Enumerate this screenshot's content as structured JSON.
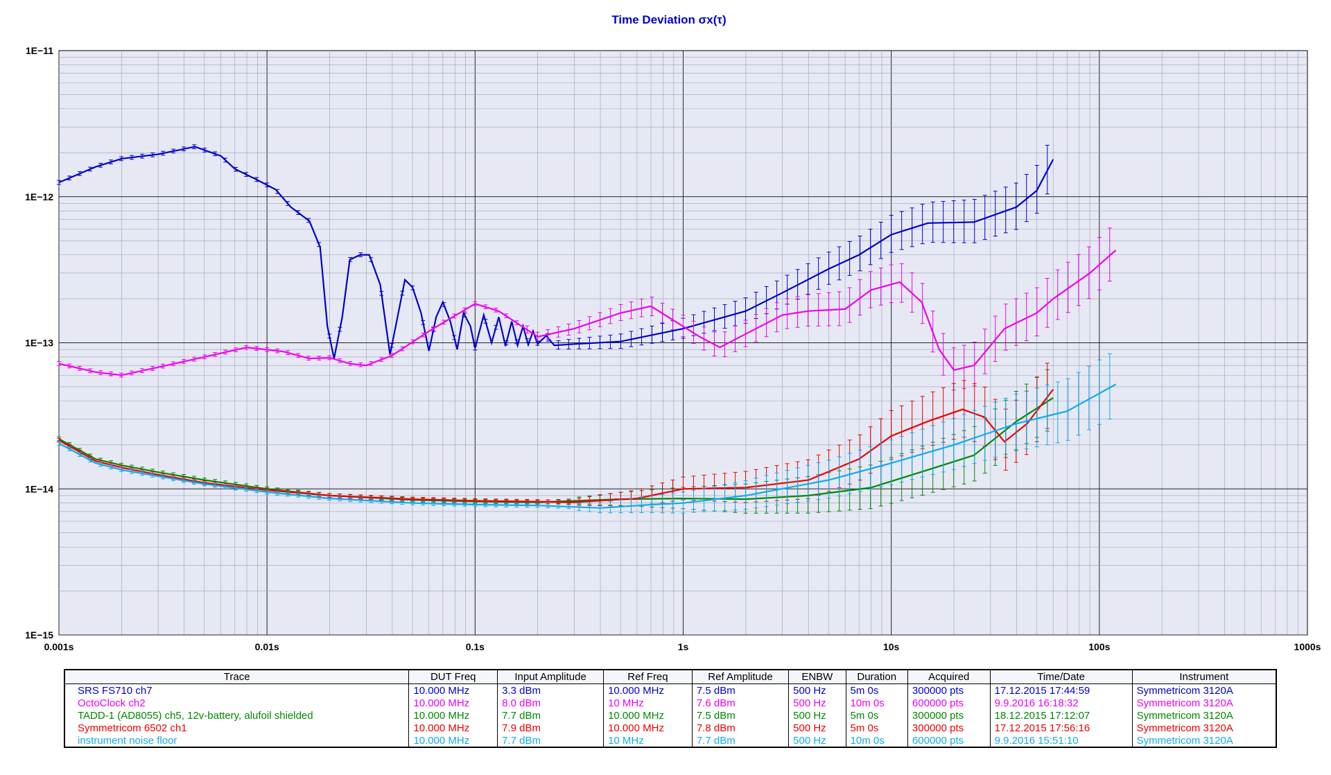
{
  "chart_data": {
    "type": "line",
    "title": "Time Deviation σx(τ)",
    "xscale": "log",
    "yscale": "log",
    "xlim": [
      0.001,
      1000
    ],
    "ylim": [
      1e-15,
      1e-11
    ],
    "x_ticks": [
      {
        "value": 0.001,
        "label": "0.001s"
      },
      {
        "value": 0.01,
        "label": "0.01s"
      },
      {
        "value": 0.1,
        "label": "0.1s"
      },
      {
        "value": 1,
        "label": "1s"
      },
      {
        "value": 10,
        "label": "10s"
      },
      {
        "value": 100,
        "label": "100s"
      },
      {
        "value": 1000,
        "label": "1000s"
      }
    ],
    "y_ticks": [
      {
        "value": 1e-11,
        "label": "1E−11"
      },
      {
        "value": 1e-12,
        "label": "1E−12"
      },
      {
        "value": 1e-13,
        "label": "1E−13"
      },
      {
        "value": 1e-14,
        "label": "1E−14"
      },
      {
        "value": 1e-15,
        "label": "1E−15"
      }
    ],
    "grid": true,
    "colors": {
      "background": "#e6e9f4",
      "major_grid": "#222222",
      "minor_grid": "#9aa0b4"
    },
    "series": [
      {
        "name": "SRS FS710 ch7",
        "color": "#0000cc",
        "points": [
          [
            0.001,
            1.25e-12
          ],
          [
            0.0015,
            1.6e-12
          ],
          [
            0.002,
            1.82e-12
          ],
          [
            0.003,
            1.95e-12
          ],
          [
            0.0045,
            2.2e-12
          ],
          [
            0.006,
            1.9e-12
          ],
          [
            0.007,
            1.55e-12
          ],
          [
            0.009,
            1.3e-12
          ],
          [
            0.011,
            1.12e-12
          ],
          [
            0.013,
            8.5e-13
          ],
          [
            0.016,
            6.8e-13
          ],
          [
            0.018,
            4.5e-13
          ],
          [
            0.0195,
            1.3e-13
          ],
          [
            0.021,
            7.8e-14
          ],
          [
            0.023,
            1.5e-13
          ],
          [
            0.025,
            3.7e-13
          ],
          [
            0.028,
            4e-13
          ],
          [
            0.031,
            4e-13
          ],
          [
            0.035,
            2.5e-13
          ],
          [
            0.039,
            8.3e-14
          ],
          [
            0.042,
            1.4e-13
          ],
          [
            0.046,
            2.7e-13
          ],
          [
            0.05,
            2.4e-13
          ],
          [
            0.055,
            1.6e-13
          ],
          [
            0.06,
            8.8e-14
          ],
          [
            0.065,
            1.5e-13
          ],
          [
            0.07,
            1.9e-13
          ],
          [
            0.076,
            1.4e-13
          ],
          [
            0.082,
            9e-14
          ],
          [
            0.088,
            1.6e-13
          ],
          [
            0.095,
            1.3e-13
          ],
          [
            0.1,
            9.2e-14
          ],
          [
            0.11,
            1.55e-13
          ],
          [
            0.12,
            1e-13
          ],
          [
            0.13,
            1.5e-13
          ],
          [
            0.14,
            9.5e-14
          ],
          [
            0.15,
            1.4e-13
          ],
          [
            0.16,
            9.6e-14
          ],
          [
            0.17,
            1.3e-13
          ],
          [
            0.18,
            9.7e-14
          ],
          [
            0.19,
            1.2e-13
          ],
          [
            0.2,
            9.8e-14
          ],
          [
            0.22,
            1.12e-13
          ],
          [
            0.24,
            9.6e-14
          ],
          [
            0.3,
            9.8e-14
          ],
          [
            0.5,
            1.02e-13
          ],
          [
            1,
            1.25e-13
          ],
          [
            2,
            1.65e-13
          ],
          [
            3,
            2.2e-13
          ],
          [
            5,
            3.2e-13
          ],
          [
            7,
            4e-13
          ],
          [
            10,
            5.5e-13
          ],
          [
            15,
            6.6e-13
          ],
          [
            25,
            6.7e-13
          ],
          [
            40,
            8.5e-13
          ],
          [
            50,
            1.1e-12
          ],
          [
            60,
            1.8e-12
          ]
        ],
        "error": {
          "from": 0.2,
          "lo": 0.4,
          "hi": 0.4
        }
      },
      {
        "name": "OctoClock ch2",
        "color": "#ee00ee",
        "points": [
          [
            0.001,
            7.2e-14
          ],
          [
            0.0015,
            6.3e-14
          ],
          [
            0.002,
            6e-14
          ],
          [
            0.003,
            6.8e-14
          ],
          [
            0.005,
            8e-14
          ],
          [
            0.008,
            9.3e-14
          ],
          [
            0.012,
            8.7e-14
          ],
          [
            0.016,
            7.8e-14
          ],
          [
            0.02,
            7.9e-14
          ],
          [
            0.025,
            7.2e-14
          ],
          [
            0.03,
            7e-14
          ],
          [
            0.04,
            8.2e-14
          ],
          [
            0.06,
            1.2e-13
          ],
          [
            0.1,
            1.85e-13
          ],
          [
            0.13,
            1.65e-13
          ],
          [
            0.2,
            1.1e-13
          ],
          [
            0.3,
            1.25e-13
          ],
          [
            0.5,
            1.6e-13
          ],
          [
            0.7,
            1.78e-13
          ],
          [
            1.2,
            1.1e-13
          ],
          [
            1.5,
            9.3e-14
          ],
          [
            2,
            1.15e-13
          ],
          [
            3,
            1.55e-13
          ],
          [
            4,
            1.65e-13
          ],
          [
            6,
            1.7e-13
          ],
          [
            8,
            2.3e-13
          ],
          [
            11,
            2.6e-13
          ],
          [
            14,
            1.9e-13
          ],
          [
            17,
            9e-14
          ],
          [
            20,
            6.5e-14
          ],
          [
            25,
            7e-14
          ],
          [
            35,
            1.25e-13
          ],
          [
            50,
            1.6e-13
          ],
          [
            60,
            2e-13
          ],
          [
            90,
            3e-13
          ],
          [
            120,
            4.3e-13
          ]
        ],
        "error": {
          "from": 0.16,
          "lo": 0.3,
          "hi": 0.45
        }
      },
      {
        "name": "TADD-1 (AD8055) ch5, 12v-battery, alufoil shielded",
        "color": "#008800",
        "points": [
          [
            0.001,
            2.2e-14
          ],
          [
            0.0015,
            1.6e-14
          ],
          [
            0.002,
            1.45e-14
          ],
          [
            0.003,
            1.3e-14
          ],
          [
            0.005,
            1.15e-14
          ],
          [
            0.01,
            1e-14
          ],
          [
            0.02,
            9e-15
          ],
          [
            0.05,
            8.4e-15
          ],
          [
            0.1,
            8.2e-15
          ],
          [
            0.2,
            8.1e-15
          ],
          [
            0.5,
            8.5e-15
          ],
          [
            1,
            8.6e-15
          ],
          [
            2,
            8.5e-15
          ],
          [
            4,
            9e-15
          ],
          [
            8,
            1.02e-14
          ],
          [
            15,
            1.35e-14
          ],
          [
            25,
            1.7e-14
          ],
          [
            40,
            2.9e-14
          ],
          [
            60,
            4.2e-14
          ]
        ],
        "error": {
          "from": 0.3,
          "lo": 0.35,
          "hi": 0.55
        }
      },
      {
        "name": "Symmetricom 6502 ch1",
        "color": "#ee0000",
        "points": [
          [
            0.001,
            2.15e-14
          ],
          [
            0.0015,
            1.55e-14
          ],
          [
            0.002,
            1.4e-14
          ],
          [
            0.003,
            1.25e-14
          ],
          [
            0.005,
            1.1e-14
          ],
          [
            0.01,
            9.8e-15
          ],
          [
            0.02,
            9e-15
          ],
          [
            0.05,
            8.5e-15
          ],
          [
            0.1,
            8.3e-15
          ],
          [
            0.3,
            8.1e-15
          ],
          [
            0.6,
            8.6e-15
          ],
          [
            1,
            1e-14
          ],
          [
            2,
            1.02e-14
          ],
          [
            4,
            1.15e-14
          ],
          [
            7,
            1.6e-14
          ],
          [
            10,
            2.3e-14
          ],
          [
            15,
            2.9e-14
          ],
          [
            22,
            3.5e-14
          ],
          [
            28,
            3.1e-14
          ],
          [
            35,
            2.1e-14
          ],
          [
            45,
            2.8e-14
          ],
          [
            60,
            4.8e-14
          ]
        ],
        "error": {
          "from": 0.3,
          "lo": 0.35,
          "hi": 0.6
        }
      },
      {
        "name": "instrument noise floor",
        "color": "#11aaee",
        "points": [
          [
            0.001,
            2.05e-14
          ],
          [
            0.0015,
            1.5e-14
          ],
          [
            0.002,
            1.35e-14
          ],
          [
            0.003,
            1.22e-14
          ],
          [
            0.005,
            1.08e-14
          ],
          [
            0.01,
            9.5e-15
          ],
          [
            0.02,
            8.6e-15
          ],
          [
            0.05,
            8e-15
          ],
          [
            0.1,
            7.8e-15
          ],
          [
            0.2,
            7.7e-15
          ],
          [
            0.4,
            7.4e-15
          ],
          [
            0.7,
            7.8e-15
          ],
          [
            1,
            8e-15
          ],
          [
            2,
            9e-15
          ],
          [
            5,
            1.15e-14
          ],
          [
            10,
            1.5e-14
          ],
          [
            20,
            2e-14
          ],
          [
            40,
            2.8e-14
          ],
          [
            70,
            3.4e-14
          ],
          [
            120,
            5.2e-14
          ]
        ],
        "error": {
          "from": 0.3,
          "lo": 0.35,
          "hi": 0.6
        }
      }
    ]
  },
  "legend_table": {
    "headers": [
      "Trace",
      "DUT Freq",
      "Input Amplitude",
      "Ref Freq",
      "Ref Amplitude",
      "ENBW",
      "Duration",
      "Acquired",
      "Time/Date",
      "Instrument"
    ],
    "rows": [
      {
        "color": "#0000cc",
        "cells": [
          "SRS FS710 ch7",
          "10.000 MHz",
          "3.3 dBm",
          "10.000 MHz",
          "7.5 dBm",
          "500 Hz",
          "5m 0s",
          "300000 pts",
          "17.12.2015 17:44:59",
          "Symmetricom 3120A"
        ]
      },
      {
        "color": "#ee00ee",
        "cells": [
          "OctoClock ch2",
          "10.000 MHz",
          "8.0 dBm",
          "10 MHz",
          "7.6 dBm",
          "500 Hz",
          "10m 0s",
          "600000 pts",
          "9.9.2016 16:18:32",
          "Symmetricom 3120A"
        ]
      },
      {
        "color": "#008800",
        "cells": [
          "TADD-1 (AD8055) ch5, 12v-battery, alufoil shielded",
          "10.000 MHz",
          "7.7 dBm",
          "10.000 MHz",
          "7.5 dBm",
          "500 Hz",
          "5m 0s",
          "300000 pts",
          "18.12.2015 17:12:07",
          "Symmetricom 3120A"
        ]
      },
      {
        "color": "#ee0000",
        "cells": [
          "Symmetricom 6502 ch1",
          "10.000 MHz",
          "7.9 dBm",
          "10.000 MHz",
          "7.8 dBm",
          "500 Hz",
          "5m 0s",
          "300000 pts",
          "17.12.2015 17:56:16",
          "Symmetricom 3120A"
        ]
      },
      {
        "color": "#11aaee",
        "cells": [
          "instrument noise floor",
          "10.000 MHz",
          "7.7 dBm",
          "10 MHz",
          "7.7 dBm",
          "500 Hz",
          "10m 0s",
          "600000 pts",
          "9.9.2016 15:51:10",
          "Symmetricom 3120A"
        ]
      }
    ]
  }
}
